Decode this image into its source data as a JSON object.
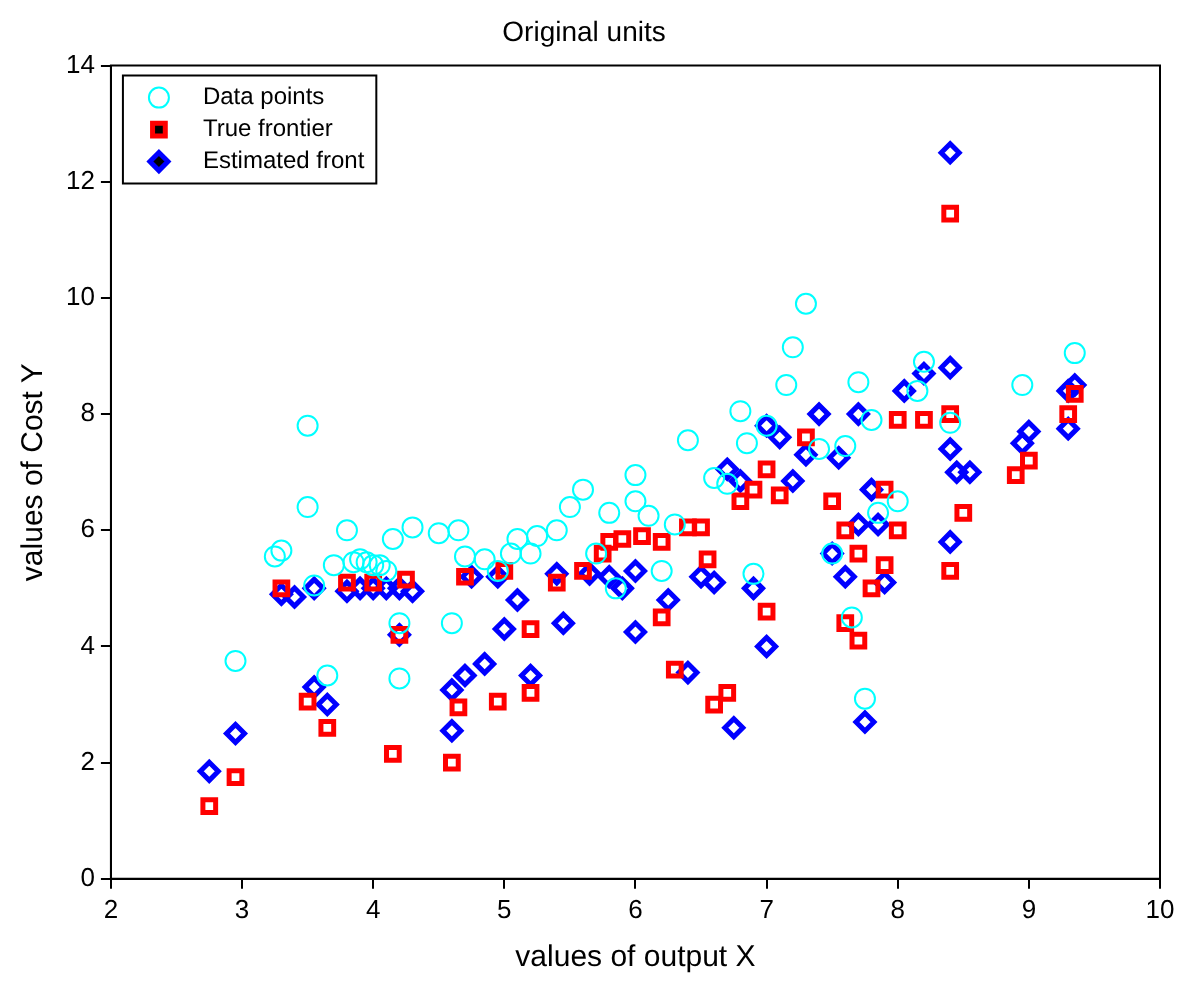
{
  "chart_data": {
    "type": "scatter",
    "title": "Original units",
    "xlabel": "values of output X",
    "ylabel": "values of Cost Y",
    "xlim": [
      2,
      10
    ],
    "xticks": [
      2,
      3,
      4,
      5,
      6,
      7,
      8,
      9,
      10
    ],
    "ylim": [
      0,
      14
    ],
    "yticks": [
      0,
      2,
      4,
      6,
      8,
      10,
      12,
      14
    ],
    "grid": false,
    "legend": "top left",
    "line_style": "none",
    "series": [
      {
        "name": "Data points",
        "color": "#00ffff",
        "marker": "circle",
        "x": [
          2.95,
          3.25,
          3.3,
          3.5,
          3.5,
          3.55,
          3.65,
          3.7,
          3.8,
          3.85,
          3.9,
          3.95,
          4.0,
          4.05,
          4.1,
          4.15,
          4.2,
          4.2,
          4.3,
          4.5,
          4.6,
          4.65,
          4.7,
          4.85,
          4.95,
          5.05,
          5.1,
          5.2,
          5.25,
          5.4,
          5.5,
          5.6,
          5.7,
          5.8,
          5.85,
          6.0,
          6.0,
          6.1,
          6.3,
          6.4,
          6.6,
          6.7,
          6.8,
          6.85,
          7.0,
          7.15,
          7.2,
          7.3,
          7.4,
          7.6,
          7.7,
          7.8,
          7.85,
          8.0,
          8.2,
          8.15,
          8.4,
          8.95,
          9.35,
          7.65,
          7.75,
          7.5,
          6.9,
          6.2
        ],
        "values": [
          3.75,
          5.55,
          5.65,
          7.8,
          6.4,
          5.05,
          3.5,
          5.4,
          6.0,
          5.45,
          5.5,
          5.45,
          5.4,
          5.4,
          5.3,
          5.85,
          4.4,
          3.45,
          6.05,
          5.95,
          4.4,
          6.0,
          5.55,
          5.5,
          5.3,
          5.6,
          5.85,
          5.6,
          5.9,
          6.0,
          6.4,
          6.7,
          5.6,
          6.3,
          5.0,
          6.95,
          6.5,
          6.25,
          6.1,
          7.55,
          6.9,
          6.8,
          8.05,
          7.5,
          7.8,
          8.5,
          9.15,
          9.9,
          7.4,
          7.45,
          8.55,
          7.9,
          6.3,
          6.5,
          8.9,
          8.4,
          7.85,
          8.5,
          9.05,
          4.5,
          3.1,
          5.6,
          5.25,
          5.3
        ]
      },
      {
        "name": "True frontier",
        "color": "#ff0000",
        "marker": "square",
        "x": [
          2.75,
          2.95,
          3.3,
          3.5,
          3.65,
          3.8,
          4.0,
          4.15,
          4.2,
          4.25,
          4.6,
          4.65,
          4.7,
          4.95,
          5.0,
          5.2,
          5.4,
          5.6,
          5.75,
          5.8,
          5.9,
          6.05,
          6.2,
          6.3,
          6.4,
          6.5,
          6.6,
          6.7,
          6.8,
          6.9,
          7.0,
          7.1,
          7.3,
          6.55,
          6.2,
          7.6,
          7.7,
          7.6,
          7.7,
          7.8,
          7.9,
          8.0,
          8.2,
          8.4,
          8.4,
          8.4,
          8.5,
          8.0,
          8.9,
          9.0,
          9.3,
          9.35,
          7.5,
          7.9,
          7.0,
          5.2
        ],
        "values": [
          1.25,
          1.75,
          5.0,
          3.05,
          2.6,
          5.1,
          5.1,
          2.15,
          4.2,
          5.15,
          2.0,
          2.95,
          5.2,
          3.05,
          5.3,
          3.2,
          5.1,
          5.3,
          5.6,
          5.8,
          5.85,
          5.9,
          5.8,
          3.6,
          6.05,
          6.05,
          3.0,
          3.2,
          6.5,
          6.7,
          7.05,
          6.6,
          7.6,
          5.5,
          4.5,
          4.4,
          4.1,
          6.0,
          5.6,
          5.0,
          5.4,
          7.9,
          7.9,
          8.0,
          5.3,
          11.45,
          6.3,
          6.0,
          6.95,
          7.2,
          8.0,
          8.35,
          6.5,
          6.7,
          4.6,
          4.3
        ]
      },
      {
        "name": "Estimated front",
        "color": "#0000ff",
        "marker": "diamond",
        "x": [
          2.75,
          2.95,
          3.3,
          3.4,
          3.55,
          3.55,
          3.65,
          3.8,
          3.9,
          4.0,
          4.1,
          4.2,
          4.3,
          4.6,
          4.6,
          4.7,
          4.75,
          4.85,
          4.95,
          5.0,
          5.1,
          5.2,
          5.4,
          5.45,
          5.65,
          5.8,
          6.0,
          6.0,
          6.25,
          6.4,
          6.5,
          6.6,
          6.7,
          6.75,
          6.8,
          7.0,
          7.1,
          7.0,
          7.2,
          7.3,
          7.4,
          7.55,
          7.7,
          7.7,
          7.75,
          7.8,
          7.85,
          7.9,
          8.05,
          8.2,
          8.4,
          8.4,
          8.4,
          8.4,
          8.45,
          8.55,
          8.95,
          9.0,
          9.3,
          9.35,
          9.3,
          7.6,
          7.5,
          6.9,
          5.9,
          4.2
        ],
        "values": [
          1.85,
          2.5,
          4.9,
          4.85,
          5.0,
          3.3,
          3.0,
          4.95,
          5.0,
          5.0,
          5.0,
          4.2,
          4.95,
          2.55,
          3.25,
          3.5,
          5.2,
          3.7,
          5.2,
          4.3,
          4.8,
          3.5,
          5.25,
          4.4,
          5.25,
          5.2,
          4.25,
          5.3,
          4.8,
          3.55,
          5.2,
          5.1,
          7.05,
          2.6,
          6.85,
          7.8,
          7.6,
          4.0,
          6.85,
          7.3,
          8.0,
          7.25,
          8.0,
          6.1,
          2.7,
          6.7,
          6.1,
          5.1,
          8.4,
          8.7,
          8.8,
          7.4,
          12.5,
          5.8,
          7.0,
          7.0,
          7.5,
          7.7,
          7.75,
          8.5,
          8.4,
          5.2,
          5.6,
          5.0,
          5.0,
          5.0
        ]
      }
    ]
  }
}
